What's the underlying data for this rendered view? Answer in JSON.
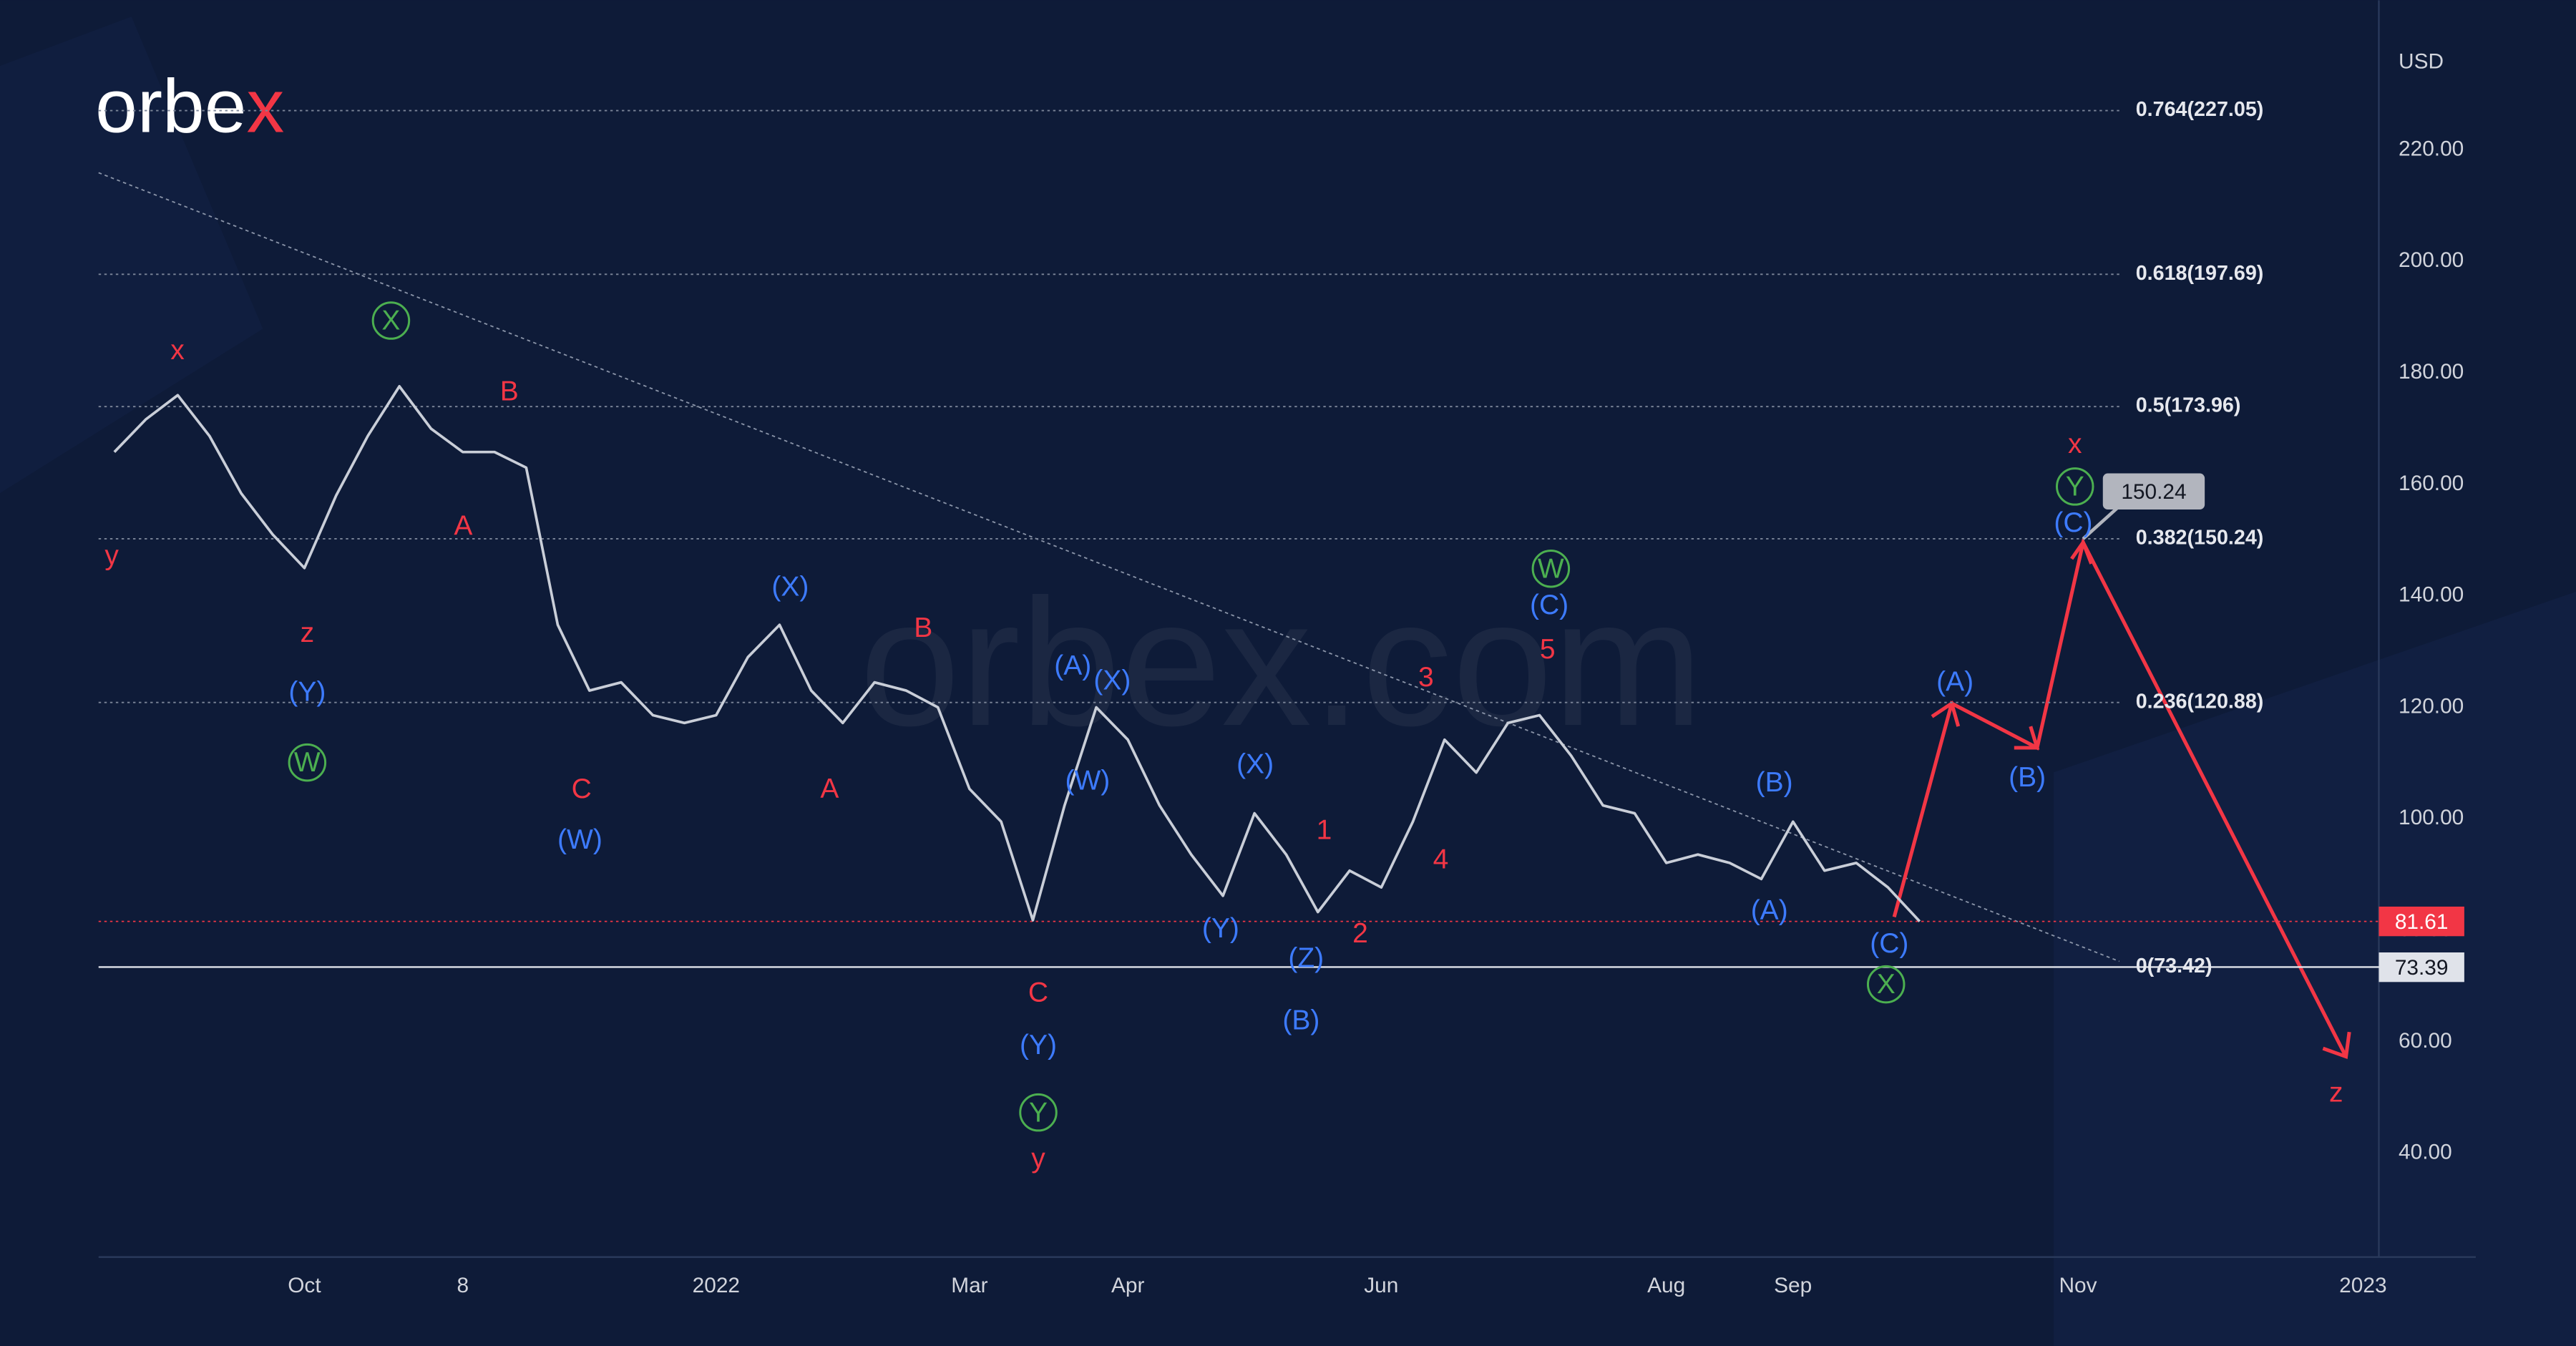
{
  "chart_data": {
    "type": "line",
    "logo": {
      "text": "orbe",
      "accent": "x"
    },
    "watermark": "orbex.com",
    "currency": "USD",
    "color": "#c9ced8",
    "categories": [
      null,
      null,
      null,
      null,
      null,
      null,
      "Oct",
      null,
      null,
      null,
      null,
      "8",
      null,
      null,
      null,
      null,
      null,
      null,
      null,
      "2022",
      null,
      null,
      null,
      null,
      null,
      null,
      null,
      "Mar",
      null,
      null,
      null,
      null,
      "Apr",
      null,
      null,
      null,
      null,
      null,
      null,
      null,
      "Jun",
      null,
      null,
      null,
      null,
      null,
      null,
      null,
      null,
      "Aug",
      null,
      null,
      null,
      "Sep",
      null,
      null,
      null,
      null,
      null,
      null,
      null,
      null,
      "Nov",
      null,
      null,
      null,
      null,
      null,
      null,
      null,
      null,
      "2023"
    ],
    "values": [
      165.8,
      171.7,
      176,
      168.7,
      158.4,
      151,
      145,
      158,
      168.7,
      177.6,
      170,
      165.8,
      165.8,
      163,
      134.8,
      123,
      124.5,
      118.6,
      117.2,
      118.6,
      129,
      134.8,
      123,
      117.2,
      124.5,
      123,
      120,
      105.4,
      99.5,
      81.8,
      102.4,
      120,
      114.2,
      102.4,
      93.6,
      86.2,
      101,
      93.6,
      83.3,
      90.7,
      87.7,
      99.5,
      114.2,
      108.3,
      117.2,
      118.6,
      111.3,
      102.4,
      101,
      92.1,
      93.6,
      92.1,
      89.2,
      99.5,
      90.7,
      92.1,
      87.7,
      81.61,
      null,
      null,
      null,
      null,
      null,
      null,
      null,
      null,
      null,
      null,
      null,
      null,
      null,
      null
    ],
    "ylim": [
      21.4,
      243.9
    ],
    "yticks": [
      {
        "value": 40,
        "label": "40.00"
      },
      {
        "value": 60,
        "label": "60.00"
      },
      {
        "value": 80,
        "label": "80.00"
      },
      {
        "value": 100,
        "label": "100.00"
      },
      {
        "value": 120,
        "label": "120.00"
      },
      {
        "value": 140,
        "label": "140.00"
      },
      {
        "value": 160,
        "label": "160.00"
      },
      {
        "value": 180,
        "label": "180.00"
      },
      {
        "value": 200,
        "label": "200.00"
      },
      {
        "value": 220,
        "label": "220.00"
      }
    ],
    "grid": false,
    "fib_levels": [
      {
        "value": 227.05,
        "label": "0.764(227.05)"
      },
      {
        "value": 197.69,
        "label": "0.618(197.69)"
      },
      {
        "value": 173.96,
        "label": "0.5(173.96)"
      },
      {
        "value": 150.24,
        "label": "0.382(150.24)"
      },
      {
        "value": 120.88,
        "label": "0.236(120.88)"
      },
      {
        "value": 73.42,
        "label": "0(73.42)"
      }
    ],
    "last_price": 81.61,
    "last_price_color": "#f23645",
    "level_price": 73.39,
    "target_price": 150.24,
    "wave_labels": [
      {
        "color": "#f23645",
        "circled": false,
        "labels": [
          "x",
          "y",
          "z",
          "B",
          "A",
          "C",
          "A",
          "B",
          "C",
          "y",
          "1",
          "2",
          "3",
          "4",
          "5",
          "x",
          "z"
        ]
      },
      {
        "color": "#3d7bff",
        "circled": false,
        "labels": [
          "(Y)",
          "(W)",
          "(X)",
          "(A)",
          "(X)",
          "(W)",
          "(Y)",
          "(X)",
          "(Y)",
          "(Z)",
          "(B)",
          "(C)",
          "(B)",
          "(A)",
          "(C)",
          "(A)",
          "(B)",
          "(C)"
        ]
      },
      {
        "color": "#4caf50",
        "circled": true,
        "labels": [
          "W",
          "X",
          "Y",
          "W",
          "X",
          "Y"
        ]
      }
    ]
  }
}
